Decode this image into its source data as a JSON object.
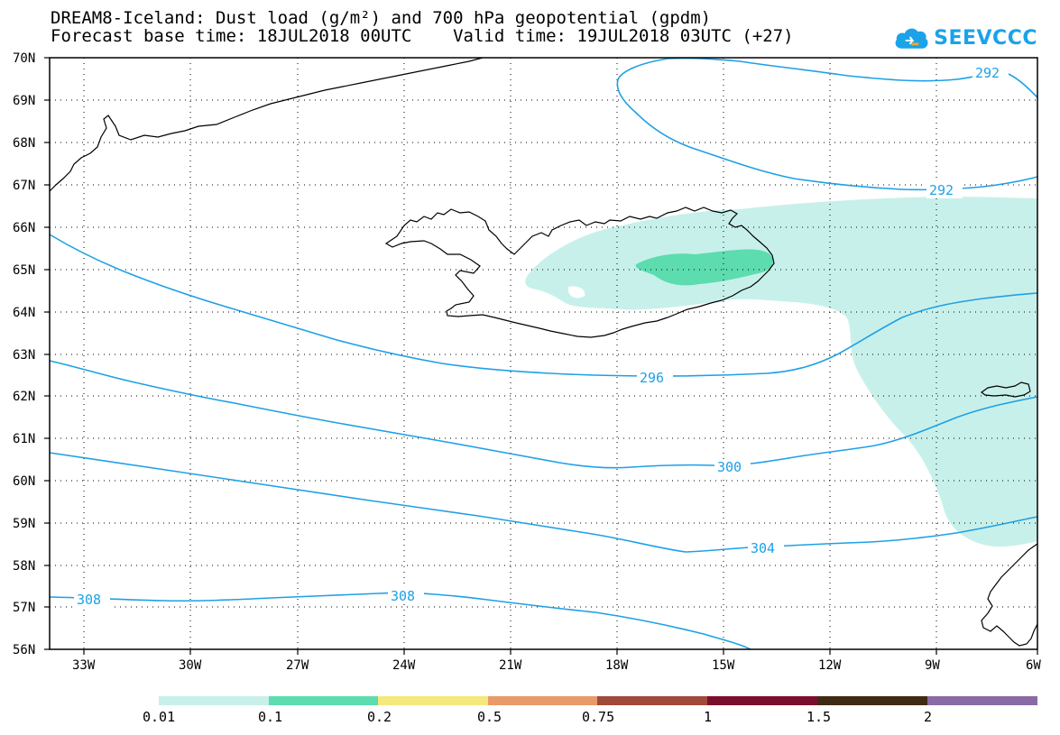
{
  "header": {
    "title_line1": "DREAM8-Iceland: Dust load (g/m²) and 700 hPa geopotential (gpdm)",
    "title_line2": "Forecast base time: 18JUL2018 00UTC    Valid time: 19JUL2018 03UTC (+27)",
    "logo_text": "SEEVCCC",
    "logo_icon": "cloud-icon"
  },
  "map": {
    "lon_range": [
      -34.5,
      -6
    ],
    "lat_range": [
      56,
      70
    ],
    "lat_ticks": [
      "56N",
      "57N",
      "58N",
      "59N",
      "60N",
      "61N",
      "62N",
      "63N",
      "64N",
      "65N",
      "66N",
      "67N",
      "68N",
      "69N",
      "70N"
    ],
    "lon_ticks": [
      "33W",
      "30W",
      "27W",
      "24W",
      "21W",
      "18W",
      "15W",
      "12W",
      "9W",
      "6W"
    ],
    "grid": true,
    "contour_color": "#1ea0e6",
    "contour_labels": [
      {
        "text": "292",
        "lon": -8.2,
        "lat": 69.7
      },
      {
        "text": "292",
        "lon": -9.3,
        "lat": 66.9
      },
      {
        "text": "296",
        "lon": -18.0,
        "lat": 62.4
      },
      {
        "text": "300",
        "lon": -14.7,
        "lat": 60.35
      },
      {
        "text": "304",
        "lon": -13.6,
        "lat": 58.45
      },
      {
        "text": "308",
        "lon": -24.0,
        "lat": 57.3
      },
      {
        "text": "308",
        "lon": -33.4,
        "lat": 57.25
      }
    ]
  },
  "colorbar": {
    "colors": [
      "#c8f0ea",
      "#5cdcaf",
      "#f5e97e",
      "#e89a6a",
      "#a04a3a",
      "#7a0f2d",
      "#3f2a14",
      "#8a6aa6"
    ],
    "labels": [
      "0.01",
      "0.1",
      "0.2",
      "0.5",
      "0.75",
      "1",
      "1.5",
      "2"
    ]
  }
}
